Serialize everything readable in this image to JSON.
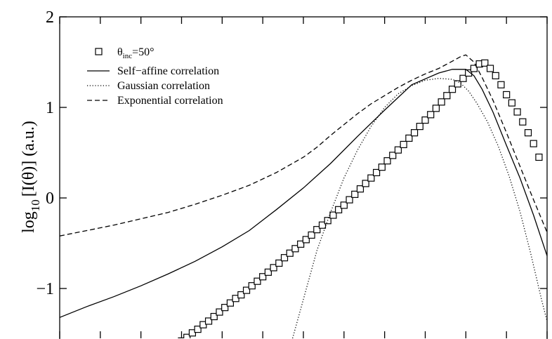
{
  "chart_data": {
    "type": "line",
    "title": "",
    "xlabel": "",
    "ylabel": {
      "prefix": "log",
      "subscript": "10",
      "body": "[I(θ)]  (a.u.)"
    },
    "xlim": [
      -90,
      90
    ],
    "ylim": [
      -1.55,
      2.0
    ],
    "y_ticks": [
      {
        "value": 2,
        "label": "2"
      },
      {
        "value": 1,
        "label": "1"
      },
      {
        "value": 0,
        "label": "0"
      },
      {
        "value": -1,
        "label": "−1"
      }
    ],
    "x_ticks": [
      -90,
      -75,
      -60,
      -45,
      -30,
      -15,
      0,
      15,
      30,
      45,
      60,
      75,
      90
    ],
    "x_tick_labels_shown": false,
    "grid": false,
    "legend": {
      "placement": "top-left",
      "entries": [
        {
          "key": "data",
          "marker": "square",
          "text_prefix": "θ",
          "text_sub": "inc",
          "text_suffix": "=50°"
        },
        {
          "key": "self_affine",
          "line": "solid",
          "text": "Self−affine correlation"
        },
        {
          "key": "gaussian",
          "line": "dotted",
          "text": "Gaussian correlation"
        },
        {
          "key": "exponential",
          "line": "dashed",
          "text": "Exponential correlation"
        }
      ]
    },
    "series": [
      {
        "key": "data",
        "style": "markers",
        "x": [
          -45,
          -43,
          -41,
          -39,
          -37,
          -35,
          -33,
          -31,
          -29,
          -27,
          -25,
          -23,
          -21,
          -19,
          -17,
          -15,
          -13,
          -11,
          -9,
          -7,
          -5,
          -3,
          -1,
          1,
          3,
          5,
          7,
          9,
          11,
          13,
          15,
          17,
          19,
          21,
          23,
          25,
          27,
          29,
          31,
          33,
          35,
          37,
          39,
          41,
          43,
          45,
          47,
          49,
          51,
          53,
          55,
          57,
          59,
          61,
          63,
          65,
          67,
          69,
          71,
          73,
          75,
          77,
          79,
          81,
          83,
          85,
          87
        ],
        "y": [
          -1.58,
          -1.54,
          -1.49,
          -1.45,
          -1.4,
          -1.36,
          -1.31,
          -1.26,
          -1.21,
          -1.16,
          -1.11,
          -1.07,
          -1.02,
          -0.97,
          -0.92,
          -0.87,
          -0.82,
          -0.77,
          -0.72,
          -0.66,
          -0.61,
          -0.56,
          -0.51,
          -0.46,
          -0.41,
          -0.35,
          -0.3,
          -0.25,
          -0.19,
          -0.13,
          -0.08,
          -0.02,
          0.04,
          0.1,
          0.16,
          0.22,
          0.28,
          0.34,
          0.41,
          0.47,
          0.53,
          0.59,
          0.66,
          0.72,
          0.79,
          0.86,
          0.92,
          0.99,
          1.06,
          1.13,
          1.2,
          1.26,
          1.32,
          1.38,
          1.43,
          1.48,
          1.49,
          1.43,
          1.35,
          1.25,
          1.14,
          1.05,
          0.95,
          0.84,
          0.72,
          0.6,
          0.45
        ]
      },
      {
        "key": "self_affine",
        "style": "solid",
        "x": [
          -90,
          -80,
          -70,
          -60,
          -50,
          -40,
          -30,
          -20,
          -10,
          0,
          10,
          20,
          30,
          40,
          50,
          55,
          60,
          63,
          66,
          70,
          75,
          80,
          85,
          90
        ],
        "y": [
          -1.32,
          -1.2,
          -1.09,
          -0.97,
          -0.84,
          -0.7,
          -0.54,
          -0.36,
          -0.13,
          0.11,
          0.38,
          0.68,
          0.97,
          1.25,
          1.38,
          1.42,
          1.42,
          1.35,
          1.2,
          0.95,
          0.58,
          0.22,
          -0.19,
          -0.64
        ]
      },
      {
        "key": "gaussian",
        "style": "dotted",
        "x": [
          -4,
          0,
          5,
          10,
          15,
          20,
          25,
          30,
          35,
          40,
          45,
          50,
          55,
          58,
          61,
          64,
          68,
          72,
          76,
          80,
          84,
          88,
          90
        ],
        "y": [
          -1.55,
          -1.12,
          -0.58,
          -0.16,
          0.22,
          0.53,
          0.79,
          1.0,
          1.15,
          1.24,
          1.3,
          1.32,
          1.31,
          1.27,
          1.18,
          1.05,
          0.84,
          0.57,
          0.24,
          -0.15,
          -0.62,
          -1.13,
          -1.36
        ]
      },
      {
        "key": "exponential",
        "style": "dashed",
        "x": [
          -90,
          -80,
          -70,
          -60,
          -50,
          -40,
          -30,
          -20,
          -10,
          0,
          5,
          10,
          15,
          20,
          25,
          30,
          35,
          40,
          45,
          50,
          55,
          58,
          60,
          63,
          66,
          70,
          75,
          80,
          85,
          90
        ],
        "y": [
          -0.42,
          -0.36,
          -0.3,
          -0.23,
          -0.16,
          -0.07,
          0.03,
          0.14,
          0.28,
          0.45,
          0.56,
          0.69,
          0.81,
          0.93,
          1.04,
          1.13,
          1.22,
          1.3,
          1.37,
          1.43,
          1.51,
          1.56,
          1.58,
          1.5,
          1.33,
          1.08,
          0.72,
          0.35,
          -0.02,
          -0.38
        ]
      }
    ]
  }
}
